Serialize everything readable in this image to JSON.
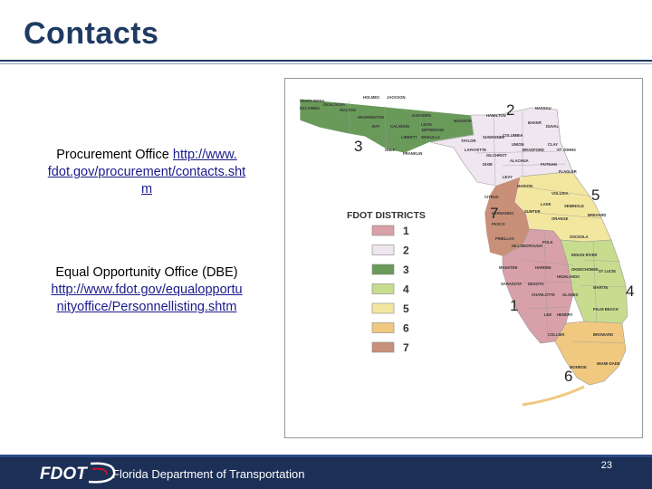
{
  "slide": {
    "title": "Contacts",
    "page_number": "23"
  },
  "contacts": [
    {
      "label": "Procurement Office",
      "link_line1": "http://www.",
      "link_line2": "fdot.gov/procurement/contacts.sht",
      "link_line3": "m"
    },
    {
      "label": "Equal Opportunity Office (DBE)",
      "link_line1": "http://www.fdot.gov/equalopportu",
      "link_line2": "nityoffice/Personnellisting.shtm"
    }
  ],
  "map": {
    "legend_title": "FDOT DISTRICTS",
    "legend": [
      {
        "label": "1",
        "color": "#d8a0a8"
      },
      {
        "label": "2",
        "color": "#efe6f0"
      },
      {
        "label": "3",
        "color": "#6a9a5a"
      },
      {
        "label": "4",
        "color": "#c8dc90"
      },
      {
        "label": "5",
        "color": "#f3e7a0"
      },
      {
        "label": "6",
        "color": "#f0c880"
      },
      {
        "label": "7",
        "color": "#c89078"
      }
    ],
    "district_numbers": [
      "2",
      "3",
      "5",
      "7",
      "4",
      "1",
      "6"
    ],
    "county_labels": [
      "SANTA ROSA",
      "OKALOOSA",
      "HOLMES",
      "JACKSON",
      "ESCAMBIA",
      "WALTON",
      "WASHINGTON",
      "GADSDEN",
      "BAY",
      "CALHOUN",
      "LEON",
      "JEFFERSON",
      "MADISON",
      "HAMILTON",
      "NASSAU",
      "BAKER",
      "DUVAL",
      "LIBERTY",
      "WAKULLA",
      "TAYLOR",
      "SUWANNEE",
      "COLUMBIA",
      "UNION",
      "CLAY",
      "ST JOHNS",
      "GULF",
      "FRANKLIN",
      "LAFAYETTE",
      "BRADFORD",
      "GILCHRIST",
      "ALACHUA",
      "PUTNAM",
      "DIXIE",
      "FLAGLER",
      "LEVY",
      "MARION",
      "VOLUSIA",
      "CITRUS",
      "LAKE",
      "SEMINOLE",
      "HERNANDO",
      "SUMTER",
      "ORANGE",
      "BREVARD",
      "PASCO",
      "OSCEOLA",
      "PINELLAS",
      "HILLSBOROUGH",
      "POLK",
      "INDIAN RIVER",
      "MANATEE",
      "HARDEE",
      "OKEECHOBEE",
      "ST LUCIE",
      "HIGHLANDS",
      "SARASOTA",
      "DESOTO",
      "MARTIN",
      "CHARLOTTE",
      "GLADES",
      "LEE",
      "HENDRY",
      "PALM BEACH",
      "COLLIER",
      "BROWARD",
      "MIAMI-DADE",
      "MONROE"
    ]
  },
  "footer": {
    "logo_text": "FDOT",
    "org_name": "Florida Department of Transportation"
  }
}
